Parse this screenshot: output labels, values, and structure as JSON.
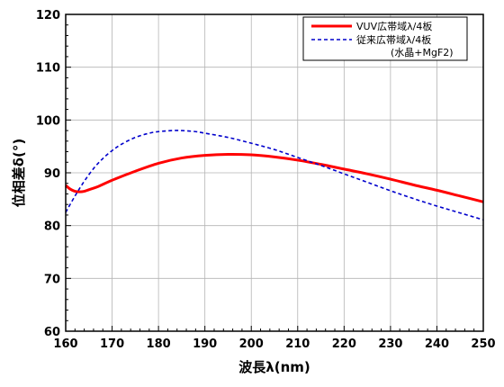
{
  "chart_data": {
    "type": "line",
    "title": "",
    "xlabel": "波長λ(nm)",
    "ylabel": "位相差δ(°)",
    "xlim": [
      160,
      250
    ],
    "ylim": [
      60,
      120
    ],
    "xticks": [
      160,
      170,
      180,
      190,
      200,
      210,
      220,
      230,
      240,
      250
    ],
    "yticks": [
      60,
      70,
      80,
      90,
      100,
      110,
      120
    ],
    "grid": true,
    "legend_position": "top-right",
    "series": [
      {
        "name": "VUV広帯域λ/4板",
        "color": "#ff0000",
        "style": "solid",
        "x": [
          160,
          161,
          162,
          163,
          164,
          165,
          167,
          170,
          175,
          180,
          185,
          190,
          195,
          200,
          205,
          210,
          215,
          220,
          225,
          230,
          235,
          240,
          245,
          250
        ],
        "y": [
          87.6,
          86.9,
          86.5,
          86.4,
          86.5,
          86.8,
          87.4,
          88.6,
          90.3,
          91.8,
          92.8,
          93.3,
          93.5,
          93.4,
          93.0,
          92.4,
          91.6,
          90.7,
          89.8,
          88.8,
          87.7,
          86.7,
          85.6,
          84.5
        ]
      },
      {
        "name": "従来広帯域λ/4板",
        "sublabel": "(水晶+MgF2)",
        "color": "#0000cc",
        "style": "dashed",
        "x": [
          160,
          162,
          164,
          166,
          168,
          170,
          172,
          175,
          178,
          180,
          183,
          185,
          188,
          190,
          195,
          200,
          205,
          210,
          215,
          220,
          225,
          230,
          235,
          240,
          245,
          250
        ],
        "y": [
          82.5,
          85.6,
          88.4,
          90.8,
          92.7,
          94.2,
          95.4,
          96.7,
          97.5,
          97.8,
          98.0,
          98.0,
          97.8,
          97.5,
          96.7,
          95.6,
          94.4,
          92.9,
          91.4,
          89.8,
          88.2,
          86.6,
          85.1,
          83.7,
          82.4,
          81.1
        ]
      }
    ]
  }
}
